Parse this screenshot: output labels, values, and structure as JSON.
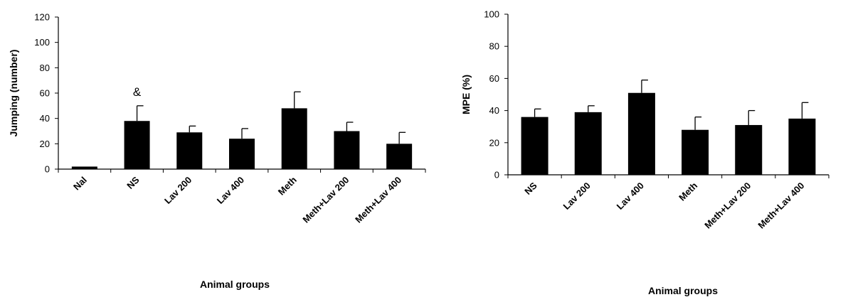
{
  "chart_data": [
    {
      "type": "bar",
      "title": "",
      "xlabel": "Animal groups",
      "ylabel": "Jumping (number)",
      "ylim": [
        0,
        120
      ],
      "yticks": [
        0,
        20,
        40,
        60,
        80,
        100,
        120
      ],
      "grid": false,
      "categories": [
        "Nal",
        "NS",
        "Lav 200",
        "Lav 400",
        "Meth",
        "Meth+Lav 200",
        "Meth+Lav 400"
      ],
      "values": [
        2,
        38,
        29,
        24,
        48,
        30,
        20
      ],
      "errors": [
        0,
        12,
        5,
        8,
        13,
        7,
        9
      ],
      "bar_color": "#000000",
      "annotations": [
        {
          "category": "NS",
          "text": "&"
        }
      ]
    },
    {
      "type": "bar",
      "title": "",
      "xlabel": "Animal groups",
      "ylabel": "MPE (%)",
      "ylim": [
        0,
        100
      ],
      "yticks": [
        0,
        20,
        40,
        60,
        80,
        100
      ],
      "grid": false,
      "categories": [
        "NS",
        "Lav 200",
        "Lav 400",
        "Meth",
        "Meth+Lav 200",
        "Meth+Lav 400"
      ],
      "values": [
        36,
        39,
        51,
        28,
        31,
        35
      ],
      "errors": [
        5,
        4,
        8,
        8,
        9,
        10
      ],
      "bar_color": "#000000",
      "annotations": []
    }
  ]
}
